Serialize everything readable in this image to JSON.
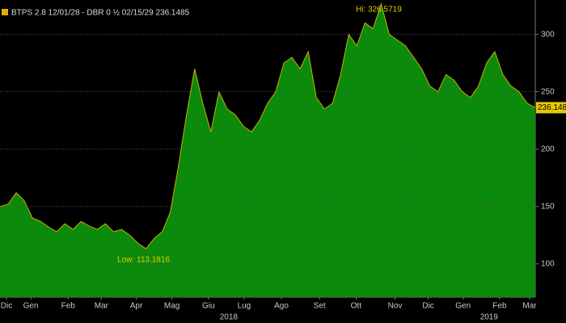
{
  "chart_data": {
    "type": "area",
    "title": "BTPS 2.8 12/01/28 - DBR 0 ½ 02/15/29 236.1485",
    "series": [
      {
        "name": "BTPS 2.8 12/01/28 - DBR 0 ½ 02/15/29",
        "color": "#0b8a0b",
        "line_color": "#c8b400",
        "x": [
          0,
          1,
          2,
          3,
          4,
          5,
          6,
          7,
          8,
          9,
          10,
          11,
          12,
          13,
          14,
          15,
          16,
          17,
          18,
          19,
          20,
          21,
          22,
          23,
          24,
          25,
          26,
          27,
          28,
          29,
          30,
          31,
          32,
          33,
          34,
          35,
          36,
          37,
          38,
          39,
          40,
          41,
          42,
          43,
          44,
          45,
          46,
          47,
          48,
          49,
          50,
          51,
          52,
          53,
          54,
          55,
          56,
          57,
          58,
          59,
          60,
          61,
          62,
          63,
          64,
          65,
          66
        ],
        "values": [
          150,
          152,
          162,
          155,
          140,
          137,
          132,
          128,
          135,
          130,
          137,
          133,
          130,
          135,
          128,
          130,
          125,
          118,
          113.1816,
          122,
          128,
          145,
          185,
          230,
          270,
          240,
          215,
          250,
          235,
          230,
          220,
          215,
          225,
          240,
          250,
          275,
          280,
          270,
          285,
          245,
          235,
          240,
          265,
          300,
          290,
          310,
          305,
          326.5719,
          300,
          295,
          290,
          280,
          270,
          255,
          250,
          265,
          260,
          250,
          245,
          255,
          275,
          285,
          265,
          255,
          250,
          240,
          236.1485
        ]
      }
    ],
    "xlim": [
      0,
      66
    ],
    "xticks": [
      {
        "value": 0.8,
        "label": "Dic"
      },
      {
        "value": 3.8,
        "label": "Gen"
      },
      {
        "value": 8.4,
        "label": "Feb"
      },
      {
        "value": 12.5,
        "label": "Mar"
      },
      {
        "value": 16.8,
        "label": "Apr"
      },
      {
        "value": 21.2,
        "label": "Mag"
      },
      {
        "value": 25.7,
        "label": "Giu"
      },
      {
        "value": 30.1,
        "label": "Lug"
      },
      {
        "value": 34.7,
        "label": "Ago"
      },
      {
        "value": 39.4,
        "label": "Set"
      },
      {
        "value": 43.9,
        "label": "Ott"
      },
      {
        "value": 48.7,
        "label": "Nov"
      },
      {
        "value": 52.8,
        "label": "Dic"
      },
      {
        "value": 57.1,
        "label": "Gen"
      },
      {
        "value": 61.6,
        "label": "Feb"
      },
      {
        "value": 65.3,
        "label": "Mar"
      }
    ],
    "x_groups": [
      {
        "value": 28.2,
        "label": "2018"
      },
      {
        "value": 60.3,
        "label": "2019"
      }
    ],
    "ylim": [
      71,
      330
    ],
    "yticks": [
      100,
      150,
      200,
      250,
      300
    ],
    "grid": true,
    "annotations": [
      {
        "text": "Hi: 326.5719",
        "x": 47,
        "y": 326.5719
      },
      {
        "text": "Low: 113.1816",
        "x": 18,
        "y": 113.1816
      }
    ]
  }
}
